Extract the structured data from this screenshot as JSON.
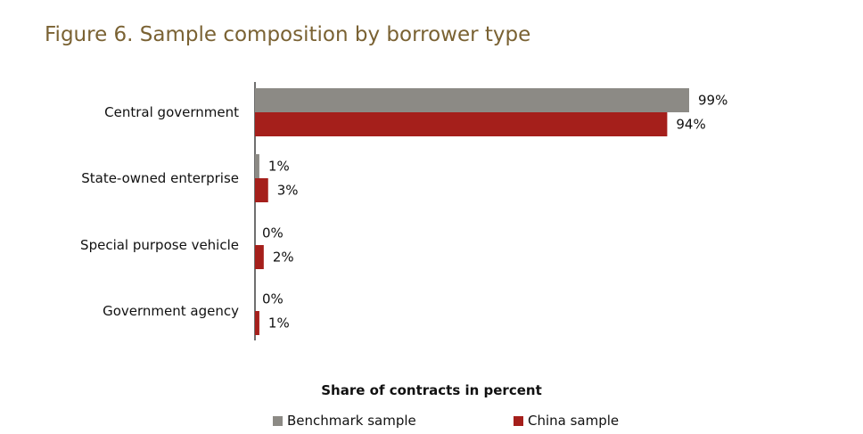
{
  "chart_data": {
    "type": "bar",
    "orientation": "horizontal",
    "title": "Figure 6. Sample composition by borrower type",
    "xlabel": "Share of contracts in percent",
    "ylabel": "",
    "xlim": [
      0,
      100
    ],
    "grid": false,
    "legend_position": "bottom",
    "categories": [
      "Central government",
      "State-owned enterprise",
      "Special purpose vehicle",
      "Government agency"
    ],
    "series": [
      {
        "name": "Benchmark sample",
        "color": "#8c8a85",
        "values": [
          99,
          1,
          0,
          0
        ],
        "labels": [
          "99%",
          "1%",
          "0%",
          "0%"
        ]
      },
      {
        "name": "China sample",
        "color": "#a51f1b",
        "values": [
          94,
          3,
          2,
          1
        ],
        "labels": [
          "94%",
          "3%",
          "2%",
          "1%"
        ]
      }
    ]
  }
}
